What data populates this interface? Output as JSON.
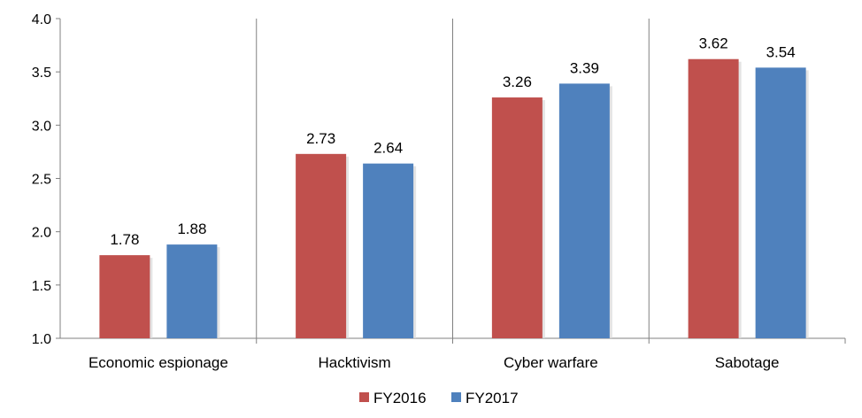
{
  "chart_data": {
    "type": "bar",
    "title": "",
    "xlabel": "",
    "ylabel": "",
    "categories": [
      "Economic espionage",
      "Hacktivism",
      "Cyber warfare",
      "Sabotage"
    ],
    "series": [
      {
        "name": "FY2016",
        "values": [
          1.78,
          2.73,
          3.26,
          3.62
        ],
        "color": "#c0504d",
        "labels": [
          "1.78",
          "2.73",
          "3.26",
          "3.62"
        ]
      },
      {
        "name": "FY2017",
        "values": [
          1.88,
          2.64,
          3.39,
          3.54
        ],
        "color": "#4f81bd",
        "labels": [
          "1.88",
          "2.64",
          "3.39",
          "3.54"
        ]
      }
    ],
    "ylim": [
      1.0,
      4.0
    ],
    "yticks": [
      1.0,
      1.5,
      2.0,
      2.5,
      3.0,
      3.5,
      4.0
    ],
    "ytick_labels": [
      "1.0",
      "1.5",
      "2.0",
      "2.5",
      "3.0",
      "3.5",
      "4.0"
    ],
    "grid": false,
    "legend_position": "bottom-center"
  }
}
